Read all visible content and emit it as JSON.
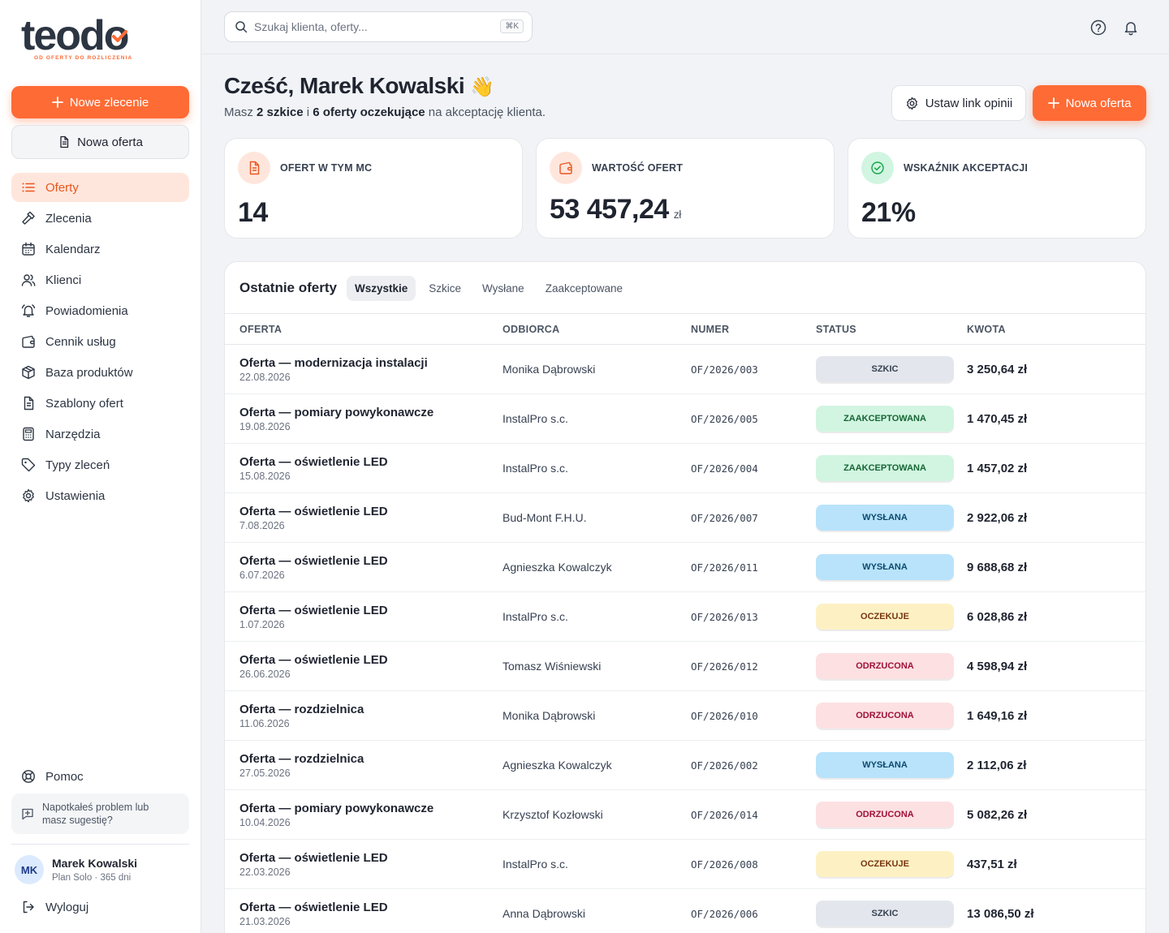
{
  "brand": {
    "name": "teodo",
    "tagline": "OD OFERTY DO ROZLICZENIA",
    "accent": "#ff6b35"
  },
  "sidebar": {
    "new_order": "Nowe zlecenie",
    "new_offer": "Nowa oferta",
    "items": [
      {
        "label": "Oferty",
        "icon": "list-icon",
        "active": true
      },
      {
        "label": "Zlecenia",
        "icon": "hammer-icon"
      },
      {
        "label": "Kalendarz",
        "icon": "calendar-icon"
      },
      {
        "label": "Klienci",
        "icon": "users-icon"
      },
      {
        "label": "Powiadomienia",
        "icon": "bell-ring-icon"
      },
      {
        "label": "Cennik usług",
        "icon": "wallet-icon"
      },
      {
        "label": "Baza produktów",
        "icon": "box-icon"
      },
      {
        "label": "Szablony ofert",
        "icon": "document-icon"
      },
      {
        "label": "Narzędzia",
        "icon": "calculator-icon"
      },
      {
        "label": "Typy zleceń",
        "icon": "tag-icon"
      },
      {
        "label": "Ustawienia",
        "icon": "gear-icon"
      }
    ],
    "help": "Pomoc",
    "feedback": "Napotkałeś problem lub masz sugestię?",
    "user": {
      "initials": "MK",
      "name": "Marek Kowalski",
      "plan": "Plan Solo · 365 dni"
    },
    "logout": "Wyloguj"
  },
  "topbar": {
    "search_placeholder": "Szukaj klienta, oferty...",
    "shortcut": "⌘K"
  },
  "header": {
    "greeting": "Cześć, Marek Kowalski",
    "wave": "👋",
    "sub_1": "Masz ",
    "sub_drafts": "2 szkice",
    "sub_2": " i ",
    "sub_pending": "6 oferty oczekujące",
    "sub_3": " na akceptację klienta.",
    "btn_link": "Ustaw link opinii",
    "btn_offer": "Nowa oferta"
  },
  "stats": [
    {
      "label": "OFERT W TYM MC",
      "value": "14",
      "unit": ""
    },
    {
      "label": "WARTOŚĆ OFERT",
      "value": "53 457,24",
      "unit": "zł"
    },
    {
      "label": "WSKAŹNIK AKCEPTACJI",
      "value": "21%",
      "unit": ""
    }
  ],
  "table": {
    "title": "Ostatnie oferty",
    "tabs": [
      "Wszystkie",
      "Szkice",
      "Wysłane",
      "Zaakceptowane"
    ],
    "columns": [
      "OFERTA",
      "ODBIORCA",
      "NUMER",
      "STATUS",
      "KWOTA"
    ],
    "rows": [
      {
        "name": "Oferta — modernizacja instalacji",
        "date": "22.08.2026",
        "recipient": "Monika Dąbrowski",
        "number": "OF/2026/003",
        "status": "SZKIC",
        "amount": "3 250,64 zł"
      },
      {
        "name": "Oferta — pomiary powykonawcze",
        "date": "19.08.2026",
        "recipient": "InstalPro s.c.",
        "number": "OF/2026/005",
        "status": "ZAAKCEPTOWANA",
        "amount": "1 470,45 zł"
      },
      {
        "name": "Oferta — oświetlenie LED",
        "date": "15.08.2026",
        "recipient": "InstalPro s.c.",
        "number": "OF/2026/004",
        "status": "ZAAKCEPTOWANA",
        "amount": "1 457,02 zł"
      },
      {
        "name": "Oferta — oświetlenie LED",
        "date": "7.08.2026",
        "recipient": "Bud-Mont F.H.U.",
        "number": "OF/2026/007",
        "status": "WYSŁANA",
        "amount": "2 922,06 zł"
      },
      {
        "name": "Oferta — oświetlenie LED",
        "date": "6.07.2026",
        "recipient": "Agnieszka Kowalczyk",
        "number": "OF/2026/011",
        "status": "WYSŁANA",
        "amount": "9 688,68 zł"
      },
      {
        "name": "Oferta — oświetlenie LED",
        "date": "1.07.2026",
        "recipient": "InstalPro s.c.",
        "number": "OF/2026/013",
        "status": "OCZEKUJE",
        "amount": "6 028,86 zł"
      },
      {
        "name": "Oferta — oświetlenie LED",
        "date": "26.06.2026",
        "recipient": "Tomasz Wiśniewski",
        "number": "OF/2026/012",
        "status": "ODRZUCONA",
        "amount": "4 598,94 zł"
      },
      {
        "name": "Oferta — rozdzielnica",
        "date": "11.06.2026",
        "recipient": "Monika Dąbrowski",
        "number": "OF/2026/010",
        "status": "ODRZUCONA",
        "amount": "1 649,16 zł"
      },
      {
        "name": "Oferta — rozdzielnica",
        "date": "27.05.2026",
        "recipient": "Agnieszka Kowalczyk",
        "number": "OF/2026/002",
        "status": "WYSŁANA",
        "amount": "2 112,06 zł"
      },
      {
        "name": "Oferta — pomiary powykonawcze",
        "date": "10.04.2026",
        "recipient": "Krzysztof Kozłowski",
        "number": "OF/2026/014",
        "status": "ODRZUCONA",
        "amount": "5 082,26 zł"
      },
      {
        "name": "Oferta — oświetlenie LED",
        "date": "22.03.2026",
        "recipient": "InstalPro s.c.",
        "number": "OF/2026/008",
        "status": "OCZEKUJE",
        "amount": "437,51 zł"
      },
      {
        "name": "Oferta — oświetlenie LED",
        "date": "21.03.2026",
        "recipient": "Anna Dąbrowski",
        "number": "OF/2026/006",
        "status": "SZKIC",
        "amount": "13 086,50 zł"
      }
    ]
  },
  "status_colors": {
    "SZKIC": {
      "bg": "#e3e7ed",
      "fg": "#374151"
    },
    "ZAAKCEPTOWANA": {
      "bg": "#d1f5e1",
      "fg": "#166534"
    },
    "WYSŁANA": {
      "bg": "#b8e3fb",
      "fg": "#0c4a6e"
    },
    "OCZEKUJE": {
      "bg": "#fdf1c4",
      "fg": "#78350f"
    },
    "ODRZUCONA": {
      "bg": "#fde0e2",
      "fg": "#9f1239"
    }
  }
}
